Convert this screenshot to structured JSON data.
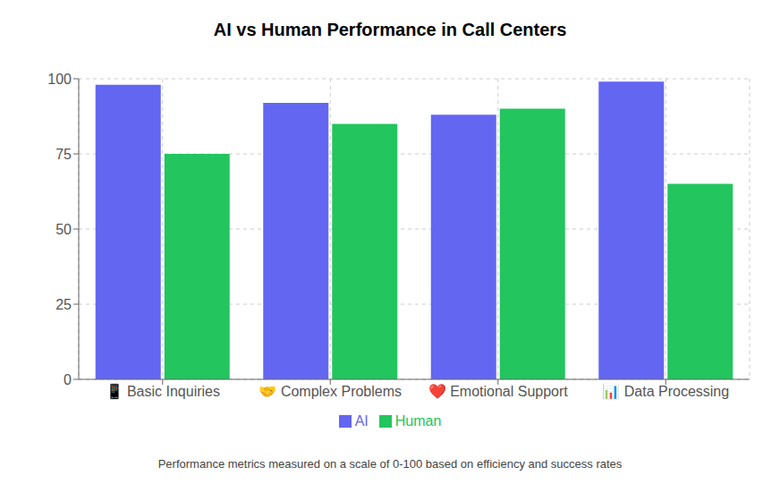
{
  "chart_data": {
    "type": "bar",
    "title": "AI vs Human Performance in Call Centers",
    "subtitle": "Performance metrics measured on a scale of 0-100 based on efficiency and success rates",
    "categories": [
      "📱 Basic Inquiries",
      "🤝 Complex Problems",
      "❤️ Emotional Support",
      "📊 Data Processing"
    ],
    "series": [
      {
        "name": "AI",
        "color": "#6366f1",
        "values": [
          98,
          92,
          88,
          99
        ]
      },
      {
        "name": "Human",
        "color": "#22c55e",
        "values": [
          75,
          85,
          90,
          65
        ]
      }
    ],
    "ylim": [
      0,
      100
    ],
    "yticks": [
      0,
      25,
      50,
      75,
      100
    ],
    "grid": true,
    "legend": "bottom"
  }
}
